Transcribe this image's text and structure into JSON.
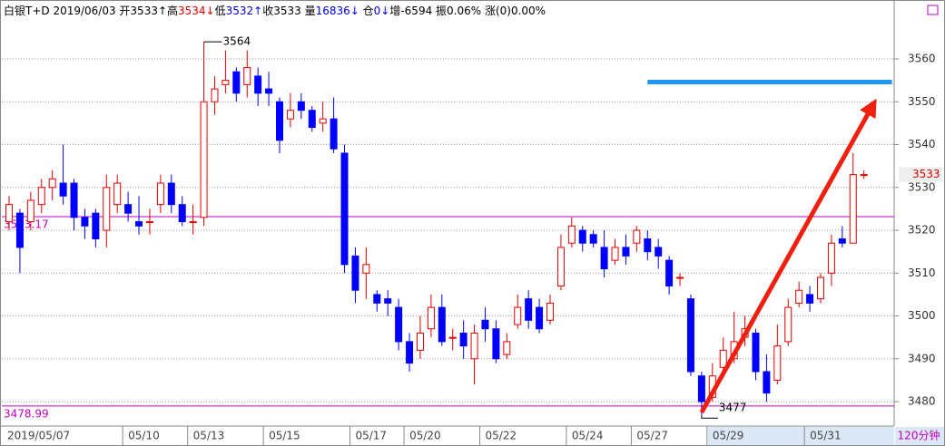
{
  "chart_data": {
    "type": "candlestick",
    "header": [
      {
        "text": "白银T+D 2019/06/03 开3533↑高",
        "color": "#000000"
      },
      {
        "text": "3534↓",
        "color": "#e00000"
      },
      {
        "text": "低",
        "color": "#000000"
      },
      {
        "text": "3532↑",
        "color": "#0000e0"
      },
      {
        "text": "收3533 量",
        "color": "#000000"
      },
      {
        "text": "16836↓",
        "color": "#0000e0"
      },
      {
        "text": " 仓",
        "color": "#000000"
      },
      {
        "text": "0↓",
        "color": "#0000e0"
      },
      {
        "text": "增-6594 振0.06% 涨(0)0.00%",
        "color": "#000000"
      }
    ],
    "period": "120分钟",
    "up_color": "#e00000",
    "down_color": "#0000ff",
    "ref_color": "#c000c0",
    "ylim": [
      3474.3,
      3569.1
    ],
    "yticks": [
      3480,
      3490,
      3500,
      3510,
      3520,
      3530,
      3540,
      3550,
      3560
    ],
    "grid": true,
    "ref_lines": [
      3523.17,
      3478.99
    ],
    "high_index": 18,
    "low_index": 64,
    "categories": [
      "2019/05/07",
      null,
      null,
      null,
      null,
      null,
      null,
      null,
      null,
      null,
      null,
      "05/10",
      null,
      null,
      null,
      null,
      null,
      "05/13",
      null,
      null,
      null,
      null,
      null,
      null,
      "05/15",
      null,
      null,
      null,
      null,
      null,
      null,
      null,
      "05/17",
      null,
      null,
      null,
      null,
      "05/20",
      null,
      null,
      null,
      null,
      null,
      null,
      "05/22",
      null,
      null,
      null,
      null,
      null,
      null,
      null,
      "05/24",
      null,
      null,
      null,
      null,
      null,
      "05/27",
      null,
      null,
      null,
      null,
      null,
      null,
      "05/29",
      null,
      null,
      null,
      null,
      null,
      null,
      null,
      null,
      "05/31",
      null,
      null,
      null,
      null,
      null
    ],
    "ohlc": [
      [
        3522,
        3528,
        3520,
        3526
      ],
      [
        3524,
        3525,
        3510,
        3516
      ],
      [
        3522,
        3529,
        3520,
        3527
      ],
      [
        3526,
        3532,
        3524,
        3530
      ],
      [
        3530,
        3534,
        3527,
        3532
      ],
      [
        3531,
        3540,
        3526,
        3528
      ],
      [
        3531,
        3532,
        3520,
        3523
      ],
      [
        3523,
        3525,
        3518,
        3521
      ],
      [
        3524,
        3525,
        3516,
        3518
      ],
      [
        3520,
        3533,
        3516,
        3530
      ],
      [
        3526,
        3533,
        3524,
        3531
      ],
      [
        3526,
        3529,
        3522,
        3524
      ],
      [
        3522,
        3528,
        3519,
        3521
      ],
      [
        3522,
        3525,
        3519,
        3522
      ],
      [
        3526,
        3533,
        3524,
        3531
      ],
      [
        3531,
        3533,
        3524,
        3526
      ],
      [
        3526,
        3528,
        3521,
        3522
      ],
      [
        3522,
        3526,
        3519,
        3522
      ],
      [
        3523,
        3564,
        3521,
        3550
      ],
      [
        3550,
        3556,
        3547,
        3553
      ],
      [
        3554,
        3562,
        3552,
        3555
      ],
      [
        3557,
        3558,
        3550,
        3552
      ],
      [
        3554,
        3562,
        3551,
        3558
      ],
      [
        3556,
        3558,
        3549,
        3552
      ],
      [
        3553,
        3557,
        3549,
        3552
      ],
      [
        3550,
        3551,
        3538,
        3541
      ],
      [
        3546,
        3552,
        3544,
        3548
      ],
      [
        3550,
        3552,
        3546,
        3548
      ],
      [
        3548,
        3549,
        3543,
        3544
      ],
      [
        3545,
        3550,
        3543,
        3546
      ],
      [
        3546,
        3551,
        3538,
        3539
      ],
      [
        3538,
        3540,
        3510,
        3512
      ],
      [
        3514,
        3516,
        3503,
        3506
      ],
      [
        3510,
        3516,
        3504,
        3512
      ],
      [
        3505,
        3506,
        3501,
        3503
      ],
      [
        3504,
        3506,
        3500,
        3503
      ],
      [
        3502,
        3504,
        3492,
        3494
      ],
      [
        3494,
        3496,
        3487,
        3489
      ],
      [
        3492,
        3500,
        3490,
        3496
      ],
      [
        3497,
        3505,
        3495,
        3502
      ],
      [
        3502,
        3505,
        3493,
        3494
      ],
      [
        3495,
        3497,
        3492,
        3495
      ],
      [
        3496,
        3499,
        3490,
        3493
      ],
      [
        3490,
        3498,
        3484,
        3496
      ],
      [
        3499,
        3502,
        3494,
        3497
      ],
      [
        3497,
        3499,
        3489,
        3490
      ],
      [
        3491,
        3496,
        3490,
        3494
      ],
      [
        3498,
        3505,
        3497,
        3502
      ],
      [
        3504,
        3506,
        3497,
        3499
      ],
      [
        3502,
        3504,
        3496,
        3497
      ],
      [
        3499,
        3505,
        3498,
        3503
      ],
      [
        3507,
        3519,
        3506,
        3516
      ],
      [
        3517,
        3523,
        3516,
        3521
      ],
      [
        3520,
        3521,
        3515,
        3517
      ],
      [
        3519,
        3520,
        3516,
        3517
      ],
      [
        3516,
        3520,
        3509,
        3511
      ],
      [
        3513,
        3518,
        3512,
        3516
      ],
      [
        3516,
        3519,
        3512,
        3514
      ],
      [
        3517,
        3521,
        3515,
        3520
      ],
      [
        3518,
        3520,
        3513,
        3515
      ],
      [
        3516,
        3518,
        3511,
        3514
      ],
      [
        3513,
        3514,
        3505,
        3507
      ],
      [
        3509,
        3510,
        3507,
        3509
      ],
      [
        3504,
        3505,
        3486,
        3487
      ],
      [
        3486,
        3487,
        3477,
        3480
      ],
      [
        3481,
        3489,
        3480,
        3486
      ],
      [
        3488,
        3495,
        3486,
        3492
      ],
      [
        3490,
        3501,
        3489,
        3494
      ],
      [
        3495,
        3500,
        3493,
        3497
      ],
      [
        3496,
        3497,
        3485,
        3487
      ],
      [
        3487,
        3491,
        3480,
        3482
      ],
      [
        3485,
        3498,
        3484,
        3493
      ],
      [
        3494,
        3504,
        3493,
        3502
      ],
      [
        3503,
        3508,
        3502,
        3506
      ],
      [
        3505,
        3507,
        3501,
        3503
      ],
      [
        3504,
        3510,
        3503,
        3509
      ],
      [
        3510,
        3519,
        3507,
        3517
      ],
      [
        3518,
        3521,
        3516,
        3517
      ],
      [
        3517,
        3538,
        3517,
        3533
      ],
      [
        3533,
        3534,
        3532,
        3533
      ]
    ],
    "drawings": [
      {
        "kind": "line",
        "color": "#2196f3",
        "x": [
          59,
          81.6
        ],
        "y": [
          3554.6,
          3554.6
        ]
      },
      {
        "kind": "arrow",
        "color": "#f02010",
        "x": [
          64,
          80
        ],
        "y": [
          3477.5,
          3550
        ]
      }
    ]
  }
}
